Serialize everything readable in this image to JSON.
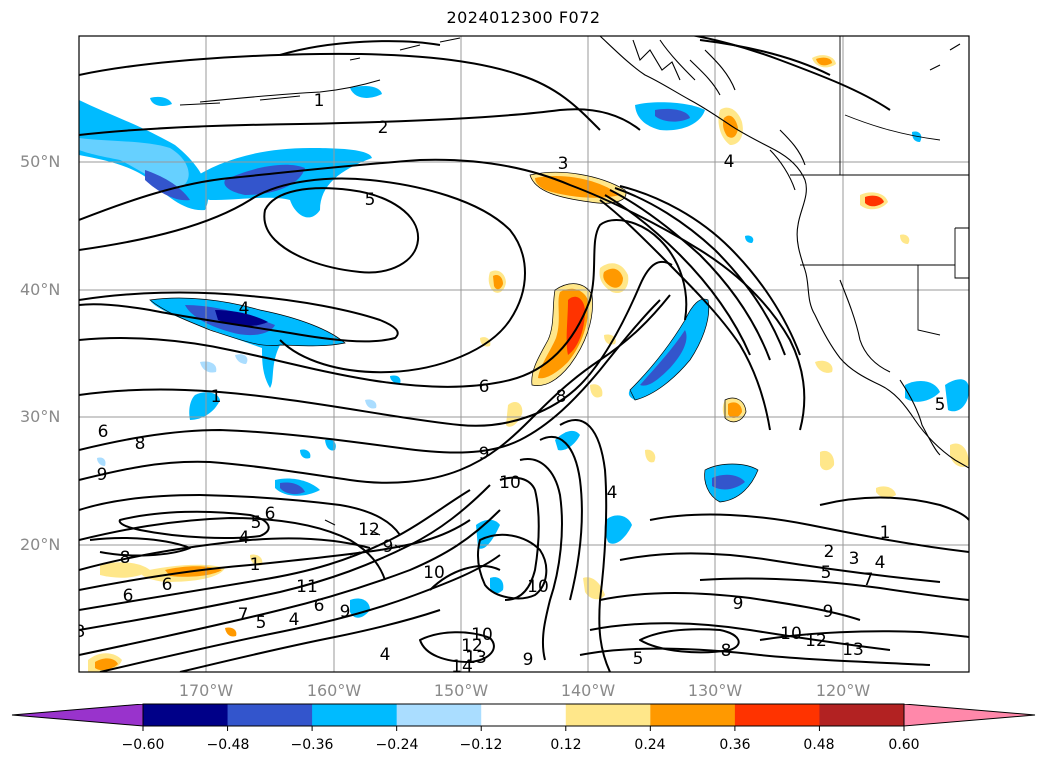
{
  "title": "2024012300 F072",
  "lat_labels": [
    "50°N",
    "40°N",
    "30°N",
    "20°N"
  ],
  "lon_labels": [
    "170°W",
    "160°W",
    "150°W",
    "140°W",
    "130°W",
    "120°W"
  ],
  "colorbar": {
    "tick_labels": [
      "−0.60",
      "−0.48",
      "−0.36",
      "−0.24",
      "−0.12",
      "0.12",
      "0.24",
      "0.36",
      "0.48",
      "0.60"
    ],
    "colors": [
      "#9933cc",
      "#000088",
      "#3355cc",
      "#00bbff",
      "#aaddff",
      "#ffffff",
      "#ffe78a",
      "#ff9900",
      "#ff3300",
      "#b22222",
      "#ff88aa"
    ]
  },
  "contour_labels": [
    "1",
    "2",
    "3",
    "5",
    "4",
    "1",
    "6",
    "8",
    "9",
    "10",
    "6",
    "8",
    "9",
    "5",
    "6",
    "4",
    "1",
    "6",
    "6",
    "8",
    "7",
    "11",
    "12",
    "9",
    "10",
    "10",
    "4",
    "6",
    "9",
    "4",
    "5",
    "2",
    "3",
    "4",
    "1",
    "5",
    "7",
    "9",
    "9",
    "10",
    "12",
    "13",
    "5",
    "8",
    "10",
    "12",
    "13",
    "14",
    "9",
    "4",
    "5",
    "4",
    "3"
  ]
}
